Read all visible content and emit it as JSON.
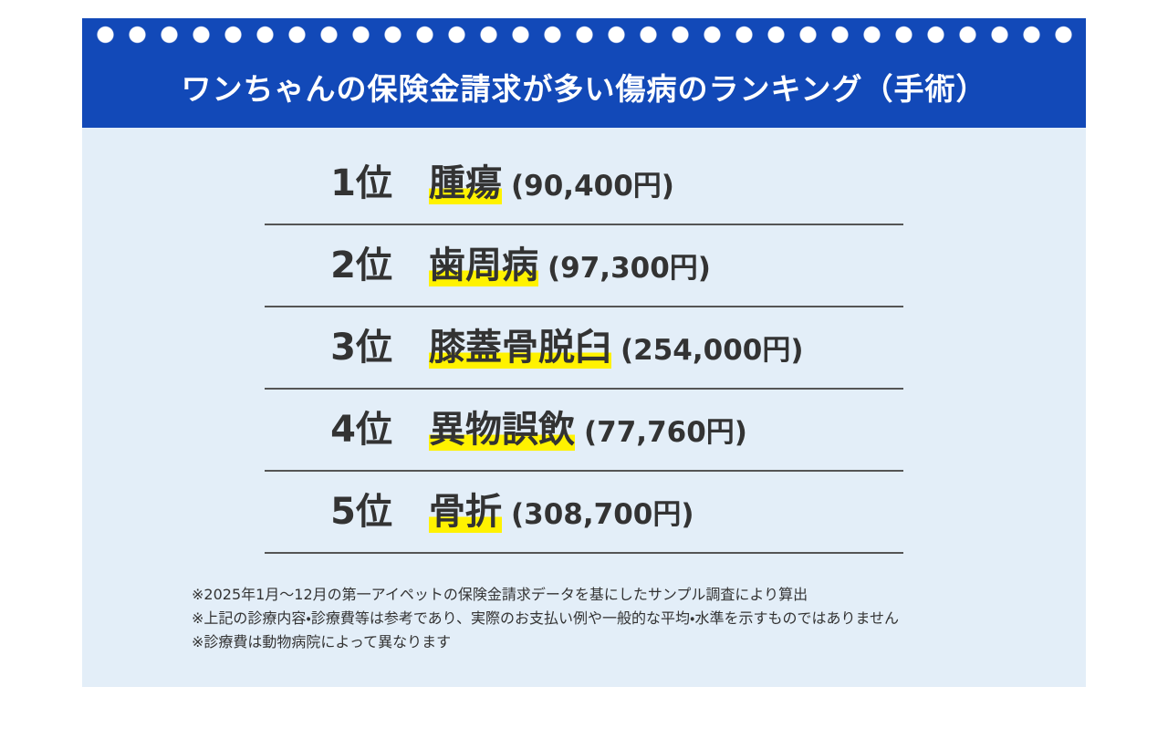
{
  "header": {
    "title": "ワンちゃんの保険金請求が多い傷病のランキング（手術）"
  },
  "rankings": [
    {
      "rank": "1位",
      "name": "腫瘍",
      "amount": "(90,400円)"
    },
    {
      "rank": "2位",
      "name": "歯周病",
      "amount": "(97,300円)"
    },
    {
      "rank": "3位",
      "name": "膝蓋骨脱臼",
      "amount": "(254,000円)"
    },
    {
      "rank": "4位",
      "name": "異物誤飲",
      "amount": "(77,760円)"
    },
    {
      "rank": "5位",
      "name": "骨折",
      "amount": "(308,700円)"
    }
  ],
  "notes": [
    "※2025年1月～12月の第一アイペットの保険金請求データを基にしたサンプル調査により算出",
    "※上記の診療内容・診療費等は参考であり、実際のお支払い例や一般的な平均・水準を示すものではありません",
    "※診療費は動物病院によって異なります"
  ]
}
